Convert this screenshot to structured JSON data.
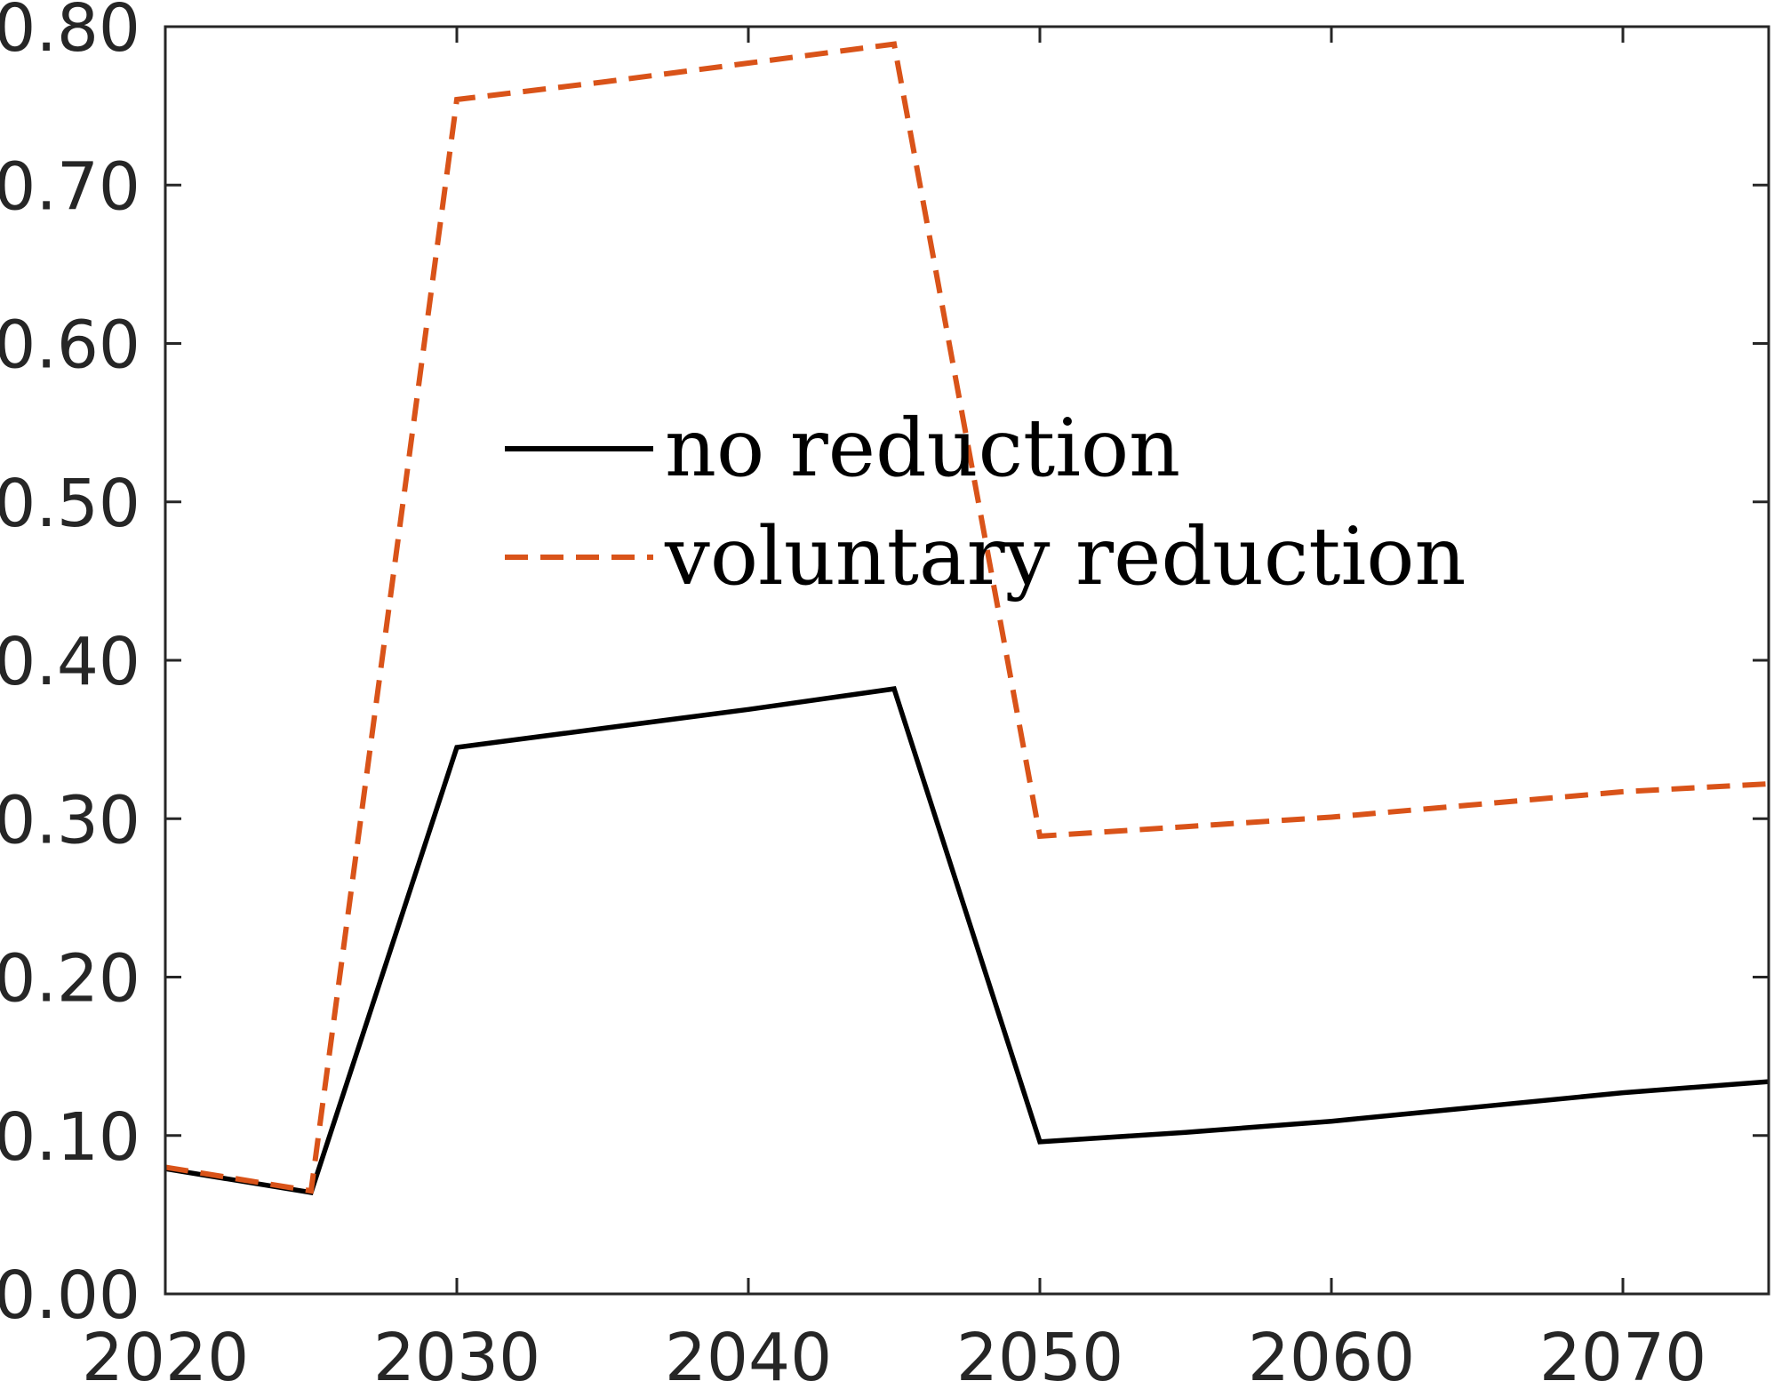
{
  "chart_data": {
    "type": "line",
    "title": "",
    "xlabel": "",
    "ylabel": "",
    "xlim": [
      2020,
      2075
    ],
    "ylim": [
      0,
      0.8
    ],
    "x_ticks": [
      2020,
      2030,
      2040,
      2050,
      2060,
      2070
    ],
    "x_tick_labels": [
      "2020",
      "2030",
      "2040",
      "2050",
      "2060",
      "2070"
    ],
    "y_ticks": [
      0,
      0.1,
      0.2,
      0.3,
      0.4,
      0.5,
      0.6,
      0.7,
      0.8
    ],
    "y_tick_labels": [
      "0.00",
      "0.10",
      "0.20",
      "0.30",
      "0.40",
      "0.50",
      "0.60",
      "0.70",
      "0.80"
    ],
    "grid": false,
    "legend_position": "center",
    "series": [
      {
        "name": "no reduction",
        "color": "#000000",
        "line_style": "solid",
        "x": [
          2020,
          2025,
          2030,
          2035,
          2040,
          2045,
          2050,
          2055,
          2060,
          2065,
          2070,
          2075
        ],
        "y": [
          0.079,
          0.064,
          0.345,
          0.357,
          0.369,
          0.382,
          0.096,
          0.102,
          0.109,
          0.118,
          0.127,
          0.134
        ]
      },
      {
        "name": "voluntary reduction",
        "color": "#d95319",
        "line_style": "dashed",
        "x": [
          2020,
          2025,
          2030,
          2035,
          2040,
          2045,
          2050,
          2055,
          2060,
          2065,
          2070,
          2075
        ],
        "y": [
          0.08,
          0.065,
          0.754,
          0.765,
          0.777,
          0.789,
          0.289,
          0.295,
          0.301,
          0.309,
          0.317,
          0.322
        ]
      }
    ]
  }
}
